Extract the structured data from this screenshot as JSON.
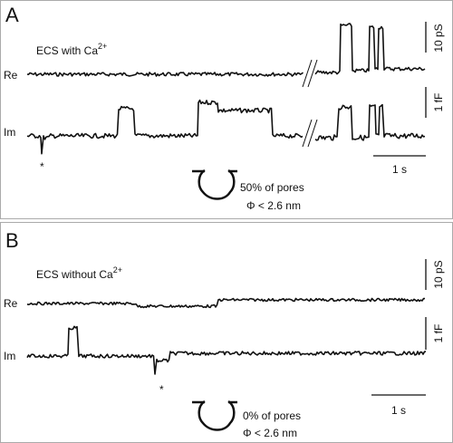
{
  "panels": [
    {
      "label": "A",
      "condition": {
        "text": "ECS with Ca",
        "superscript": "2+"
      },
      "trace_labels": [
        "Re",
        "Im"
      ],
      "scale_bars": {
        "re": "10 pS",
        "im": "1 fF",
        "time": "1 s"
      },
      "marker": "*",
      "pore": {
        "fraction": "50% of pores",
        "size": "Φ < 2.6 nm"
      }
    },
    {
      "label": "B",
      "condition": {
        "text": "ECS without Ca",
        "superscript": "2+"
      },
      "trace_labels": [
        "Re",
        "Im"
      ],
      "scale_bars": {
        "re": "10 pS",
        "im": "1 fF",
        "time": "1 s"
      },
      "marker": "*",
      "pore": {
        "fraction": "0% of pores",
        "size": "Φ < 2.6 nm"
      }
    }
  ]
}
